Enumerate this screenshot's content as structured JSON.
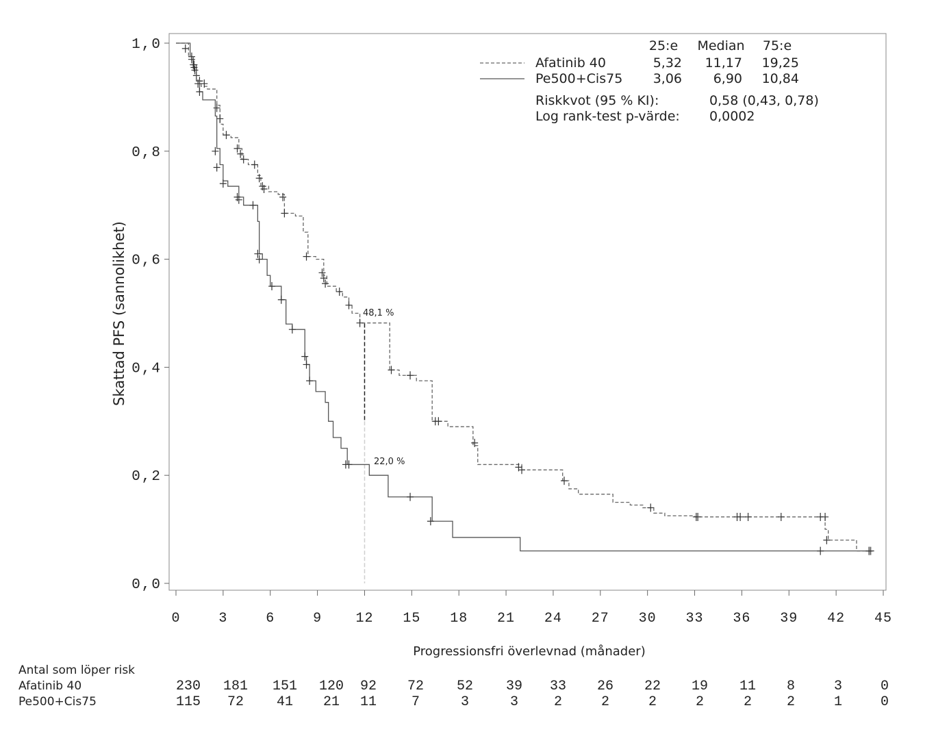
{
  "chart_data": {
    "type": "line",
    "subtype": "kaplan-meier",
    "xlabel": "Progressionsfri överlevnad (månader)",
    "ylabel": "Skattad PFS (sannolikhet)",
    "xlim": [
      0,
      45
    ],
    "ylim": [
      0,
      1
    ],
    "xticks": [
      "0",
      "3",
      "6",
      "9",
      "12",
      "15",
      "18",
      "21",
      "24",
      "27",
      "30",
      "33",
      "36",
      "39",
      "42",
      "45"
    ],
    "yticks": [
      "0,0",
      "0,2",
      "0,4",
      "0,6",
      "0,8",
      "1,0"
    ],
    "xtick_values": [
      0,
      3,
      6,
      9,
      12,
      15,
      18,
      21,
      24,
      27,
      30,
      33,
      36,
      39,
      42,
      45
    ],
    "ytick_values": [
      0,
      0.2,
      0.4,
      0.6,
      0.8,
      1.0
    ],
    "series": [
      {
        "name": "Afatinib 40",
        "style": "dashed",
        "color": "#666666",
        "steps": [
          [
            0,
            1.0
          ],
          [
            0.8,
            0.975
          ],
          [
            1.1,
            0.955
          ],
          [
            1.3,
            0.93
          ],
          [
            1.6,
            0.92
          ],
          [
            2.0,
            0.915
          ],
          [
            2.6,
            0.885
          ],
          [
            2.8,
            0.85
          ],
          [
            3.0,
            0.83
          ],
          [
            3.5,
            0.825
          ],
          [
            4.0,
            0.805
          ],
          [
            4.2,
            0.785
          ],
          [
            4.6,
            0.775
          ],
          [
            4.9,
            0.775
          ],
          [
            5.2,
            0.755
          ],
          [
            5.4,
            0.735
          ],
          [
            5.9,
            0.725
          ],
          [
            6.5,
            0.72
          ],
          [
            6.9,
            0.685
          ],
          [
            7.6,
            0.68
          ],
          [
            8.1,
            0.65
          ],
          [
            8.4,
            0.605
          ],
          [
            8.9,
            0.6
          ],
          [
            9.4,
            0.57
          ],
          [
            9.6,
            0.55
          ],
          [
            10.2,
            0.54
          ],
          [
            10.6,
            0.53
          ],
          [
            11.0,
            0.515
          ],
          [
            11.2,
            0.5
          ],
          [
            11.7,
            0.482
          ],
          [
            13.6,
            0.395
          ],
          [
            14.2,
            0.385
          ],
          [
            15.3,
            0.375
          ],
          [
            16.3,
            0.3
          ],
          [
            17.3,
            0.29
          ],
          [
            18.9,
            0.255
          ],
          [
            19.2,
            0.22
          ],
          [
            20.8,
            0.22
          ],
          [
            22.0,
            0.21
          ],
          [
            24.6,
            0.19
          ],
          [
            25.0,
            0.175
          ],
          [
            25.6,
            0.165
          ],
          [
            27.8,
            0.15
          ],
          [
            28.9,
            0.145
          ],
          [
            29.7,
            0.14
          ],
          [
            30.4,
            0.13
          ],
          [
            31.1,
            0.125
          ],
          [
            33.0,
            0.123
          ],
          [
            41.3,
            0.1
          ],
          [
            41.5,
            0.08
          ],
          [
            43.3,
            0.06
          ],
          [
            44.2,
            0.06
          ]
        ],
        "censored": [
          [
            0.6,
            0.99
          ],
          [
            1.0,
            0.975
          ],
          [
            1.15,
            0.96
          ],
          [
            1.3,
            0.94
          ],
          [
            1.5,
            0.93
          ],
          [
            1.8,
            0.925
          ],
          [
            2.6,
            0.88
          ],
          [
            2.8,
            0.86
          ],
          [
            3.2,
            0.83
          ],
          [
            3.9,
            0.805
          ],
          [
            4.1,
            0.795
          ],
          [
            4.3,
            0.785
          ],
          [
            5.0,
            0.775
          ],
          [
            5.3,
            0.75
          ],
          [
            5.5,
            0.735
          ],
          [
            5.6,
            0.73
          ],
          [
            6.8,
            0.715
          ],
          [
            6.9,
            0.685
          ],
          [
            8.3,
            0.605
          ],
          [
            9.3,
            0.575
          ],
          [
            9.4,
            0.565
          ],
          [
            9.5,
            0.555
          ],
          [
            10.4,
            0.54
          ],
          [
            11.0,
            0.515
          ],
          [
            11.7,
            0.482
          ],
          [
            13.7,
            0.395
          ],
          [
            14.9,
            0.385
          ],
          [
            16.5,
            0.3
          ],
          [
            16.7,
            0.3
          ],
          [
            19.0,
            0.26
          ],
          [
            21.8,
            0.215
          ],
          [
            22.0,
            0.21
          ],
          [
            24.7,
            0.19
          ],
          [
            30.2,
            0.14
          ],
          [
            33.1,
            0.123
          ],
          [
            33.2,
            0.123
          ],
          [
            35.7,
            0.123
          ],
          [
            35.9,
            0.123
          ],
          [
            36.4,
            0.123
          ],
          [
            38.5,
            0.123
          ],
          [
            41.0,
            0.123
          ],
          [
            41.3,
            0.123
          ],
          [
            41.4,
            0.08
          ],
          [
            44.1,
            0.06
          ],
          [
            44.2,
            0.06
          ]
        ]
      },
      {
        "name": "Pe500+Cis75",
        "style": "solid",
        "color": "#555555",
        "steps": [
          [
            0,
            1.0
          ],
          [
            0.9,
            0.975
          ],
          [
            1.1,
            0.96
          ],
          [
            1.3,
            0.93
          ],
          [
            1.5,
            0.91
          ],
          [
            1.7,
            0.895
          ],
          [
            2.5,
            0.865
          ],
          [
            2.6,
            0.805
          ],
          [
            2.8,
            0.775
          ],
          [
            3.0,
            0.745
          ],
          [
            3.3,
            0.735
          ],
          [
            4.0,
            0.715
          ],
          [
            4.3,
            0.7
          ],
          [
            5.0,
            0.7
          ],
          [
            5.2,
            0.67
          ],
          [
            5.3,
            0.61
          ],
          [
            5.5,
            0.6
          ],
          [
            5.8,
            0.57
          ],
          [
            6.0,
            0.55
          ],
          [
            6.5,
            0.55
          ],
          [
            6.7,
            0.525
          ],
          [
            7.0,
            0.48
          ],
          [
            7.4,
            0.47
          ],
          [
            8.0,
            0.47
          ],
          [
            8.2,
            0.42
          ],
          [
            8.3,
            0.405
          ],
          [
            8.5,
            0.375
          ],
          [
            8.9,
            0.355
          ],
          [
            9.5,
            0.335
          ],
          [
            9.7,
            0.3
          ],
          [
            10.0,
            0.27
          ],
          [
            10.5,
            0.25
          ],
          [
            10.9,
            0.22
          ],
          [
            12.3,
            0.2
          ],
          [
            13.5,
            0.16
          ],
          [
            15.1,
            0.16
          ],
          [
            16.3,
            0.115
          ],
          [
            17.6,
            0.085
          ],
          [
            21.9,
            0.06
          ],
          [
            44.2,
            0.06
          ]
        ],
        "censored": [
          [
            1.0,
            0.97
          ],
          [
            1.1,
            0.96
          ],
          [
            1.15,
            0.955
          ],
          [
            1.2,
            0.95
          ],
          [
            1.4,
            0.925
          ],
          [
            1.5,
            0.91
          ],
          [
            2.5,
            0.8
          ],
          [
            2.6,
            0.77
          ],
          [
            3.0,
            0.74
          ],
          [
            3.9,
            0.715
          ],
          [
            4.0,
            0.71
          ],
          [
            4.9,
            0.7
          ],
          [
            5.2,
            0.61
          ],
          [
            5.3,
            0.6
          ],
          [
            6.1,
            0.55
          ],
          [
            6.7,
            0.525
          ],
          [
            7.4,
            0.47
          ],
          [
            8.2,
            0.42
          ],
          [
            8.3,
            0.405
          ],
          [
            8.5,
            0.375
          ],
          [
            10.8,
            0.22
          ],
          [
            11.0,
            0.22
          ],
          [
            14.9,
            0.16
          ],
          [
            16.2,
            0.115
          ],
          [
            41.0,
            0.06
          ],
          [
            44.1,
            0.06
          ]
        ]
      }
    ],
    "annotations": [
      {
        "text": "48,1 %",
        "x": 12,
        "y": 0.481,
        "style": "dashed",
        "color": "#222222"
      },
      {
        "text": "22,0 %",
        "x": 12,
        "y": 0.22,
        "style": "dashed",
        "color": "#cfcfcf"
      }
    ],
    "stats_table": {
      "headers": [
        "25:e",
        "Median",
        "75:e"
      ],
      "rows": [
        {
          "name": "Afatinib 40",
          "values": [
            "5,32",
            "11,17",
            "19,25"
          ]
        },
        {
          "name": "Pe500+Cis75",
          "values": [
            "3,06",
            "6,90",
            "10,84"
          ]
        }
      ],
      "hr_label": "Riskkvot (95 % KI):",
      "hr_value": "0,58 (0,43, 0,78)",
      "logrank_label": "Log rank-test p-värde:",
      "logrank_value": "0,0002"
    },
    "risk_table": {
      "title": "Antal som löper risk",
      "rows": [
        {
          "name": "Afatinib 40",
          "values": [
            "230",
            "181",
            "151",
            "120",
            "92",
            "72",
            "52",
            "39",
            "33",
            "26",
            "22",
            "19",
            "11",
            "8",
            "3",
            "0"
          ]
        },
        {
          "name": "Pe500+Cis75",
          "values": [
            "115",
            "72",
            "41",
            "21",
            "11",
            "7",
            "3",
            "3",
            "2",
            "2",
            "2",
            "2",
            "2",
            "2",
            "1",
            "0"
          ]
        }
      ]
    }
  }
}
